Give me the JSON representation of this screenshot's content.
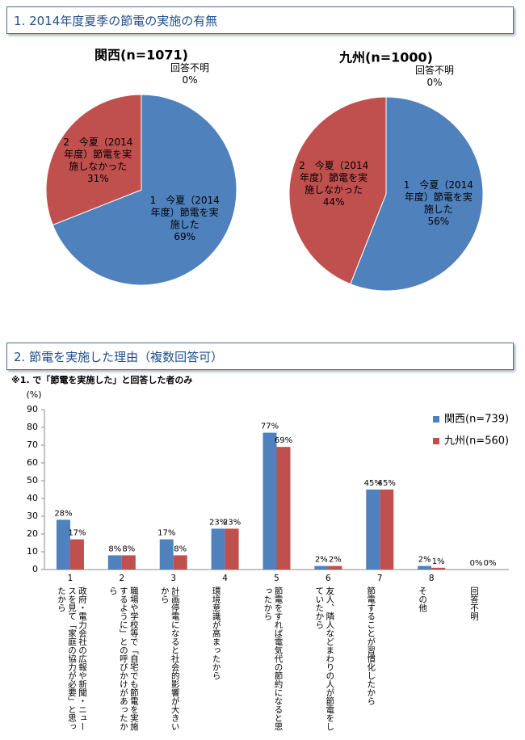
{
  "sections": [
    {
      "title": "1. 2014年度夏季の節電の実施の有無"
    },
    {
      "title": "2. 節電を実施した理由（複数回答可）"
    }
  ],
  "chart_data": [
    {
      "type": "pie",
      "title": "関西(n=1071)",
      "labels": [
        "1　今夏（2014年度）節電を実施した",
        "2　今夏（2014年度）節電を実施しなかった",
        "回答不明"
      ],
      "values": [
        69,
        31,
        0
      ],
      "value_labels": [
        "69%",
        "31%",
        "0%"
      ],
      "colors": [
        "#4f81bd",
        "#c0504d",
        "#9bbb59"
      ]
    },
    {
      "type": "pie",
      "title": "九州(n=1000)",
      "labels": [
        "1　今夏（2014年度）節電を実施した",
        "2　今夏（2014年度）節電を実施しなかった",
        "回答不明"
      ],
      "values": [
        56,
        44,
        0
      ],
      "value_labels": [
        "56%",
        "44%",
        "0%"
      ],
      "colors": [
        "#4f81bd",
        "#c0504d",
        "#9bbb59"
      ]
    },
    {
      "type": "bar",
      "note": "※1. で「節電を実施した」と回答した者のみ",
      "ylabel": "(%)",
      "category_ids": [
        "1",
        "2",
        "3",
        "4",
        "5",
        "6",
        "7",
        "8",
        null
      ],
      "categories": [
        "政府・電力会社の広報や新聞・ニュースを見て「家庭の協力が必要」と思ったから",
        "職場や学校等で「自宅でも節電を実施するように」との呼びかけがあったから",
        "計画停電になると社会的影響が大きいから",
        "環境意識が高まったから",
        "節電をすれば電気代の節約になると思ったから",
        "友人、隣人などまわりの人が節電をしていたから",
        "節電することが習慣化したから",
        "その他",
        "回答不明"
      ],
      "series": [
        {
          "name": "関西(n=739)",
          "color": "#4f81bd",
          "values": [
            28,
            8,
            17,
            23,
            77,
            2,
            45,
            2,
            0
          ],
          "value_labels": [
            "28%",
            "8%",
            "17%",
            "23%",
            "77%",
            "2%",
            "45%",
            "2%",
            "0%"
          ]
        },
        {
          "name": "九州(n=560)",
          "color": "#c0504d",
          "values": [
            17,
            8,
            8,
            23,
            69,
            2,
            45,
            1,
            0
          ],
          "value_labels": [
            "17%",
            "8%",
            "8%",
            "23%",
            "69%",
            "2%",
            "45%",
            "1%",
            "0%"
          ]
        }
      ],
      "ylim": [
        0,
        90
      ],
      "yticks": [
        0,
        10,
        20,
        30,
        40,
        50,
        60,
        70,
        80,
        90
      ],
      "grid": false
    }
  ]
}
